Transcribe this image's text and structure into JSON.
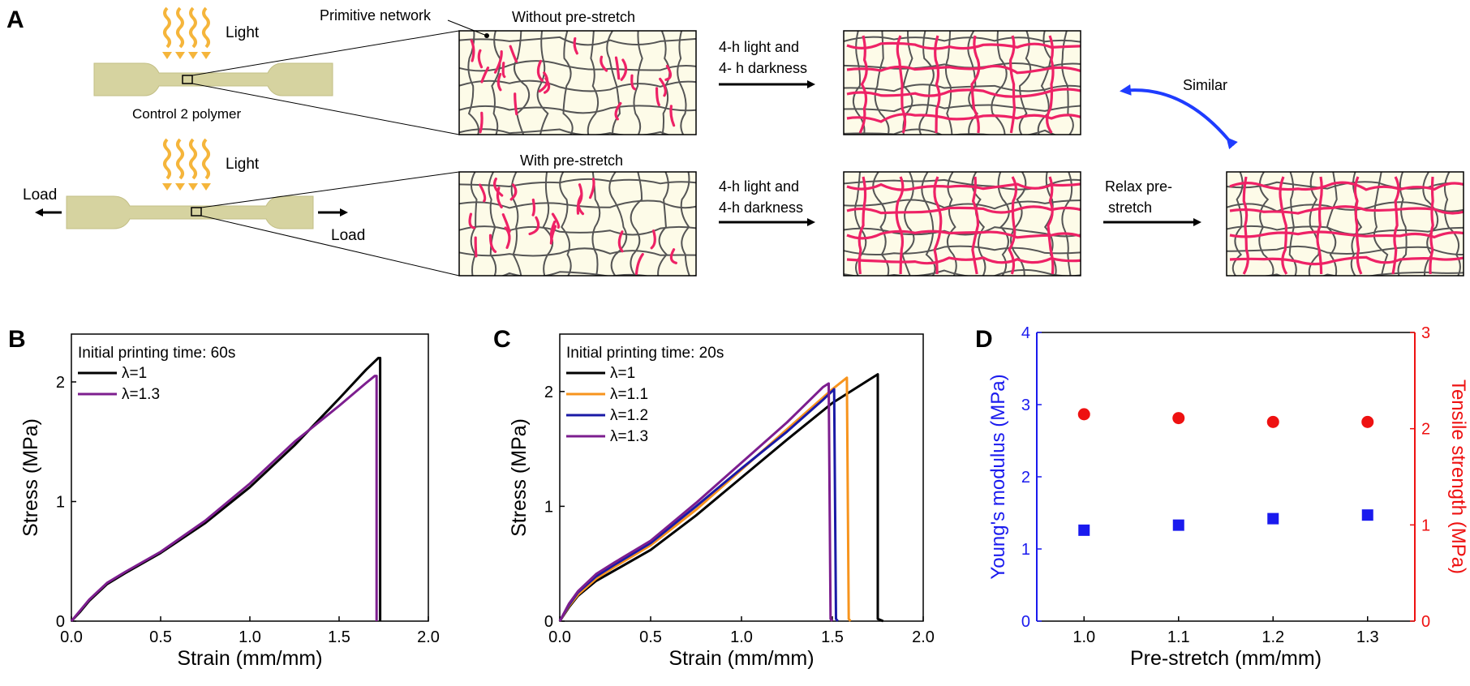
{
  "panelA": {
    "label": "A",
    "light": "Light",
    "load": "Load",
    "control": "Control 2 polymer",
    "primitive": "Primitive network",
    "without": "Without pre-stretch",
    "with": "With pre-stretch",
    "step_top_1": "4-h light and",
    "step_top_2": "4- h darkness",
    "step_bot_1": "4-h light and",
    "step_bot_2": "4-h darkness",
    "relax_1": "Relax pre-",
    "relax_2": "stretch",
    "similar": "Similar",
    "colors": {
      "strand": "#555555",
      "new_strand": "#ee2266",
      "box": "#fdfbe8",
      "arrow_blue": "#1f3cff",
      "light": "#f5b53b",
      "polymer": "#d6d3a0"
    }
  },
  "chart_data": [
    {
      "panel": "B",
      "type": "line",
      "annotation": "Initial printing time: 60s",
      "xlabel": "Strain (mm/mm)",
      "ylabel": "Stress (MPa)",
      "xlim": [
        0,
        2.0
      ],
      "ylim": [
        0,
        2.4
      ],
      "xticks": [
        "0.0",
        "0.5",
        "1.0",
        "1.5",
        "2.0"
      ],
      "yticks": [
        "0",
        "1",
        "2"
      ],
      "series": [
        {
          "name": "λ=1",
          "color": "#000000",
          "x": [
            0,
            0.05,
            0.1,
            0.2,
            0.3,
            0.5,
            0.75,
            1.0,
            1.25,
            1.5,
            1.65,
            1.72,
            1.73,
            1.73
          ],
          "y": [
            0,
            0.08,
            0.17,
            0.31,
            0.4,
            0.57,
            0.82,
            1.12,
            1.47,
            1.86,
            2.1,
            2.2,
            2.2,
            0
          ]
        },
        {
          "name": "λ=1.3",
          "color": "#7d1e8f",
          "x": [
            0,
            0.05,
            0.1,
            0.2,
            0.3,
            0.5,
            0.75,
            1.0,
            1.25,
            1.5,
            1.65,
            1.7,
            1.71,
            1.71
          ],
          "y": [
            0,
            0.09,
            0.18,
            0.32,
            0.41,
            0.58,
            0.84,
            1.15,
            1.5,
            1.8,
            1.99,
            2.05,
            2.05,
            0
          ]
        }
      ]
    },
    {
      "panel": "C",
      "type": "line",
      "annotation": "Initial printing time: 20s",
      "xlabel": "Strain (mm/mm)",
      "ylabel": "Stress (MPa)",
      "xlim": [
        0,
        2.0
      ],
      "ylim": [
        0,
        2.5
      ],
      "xticks": [
        "0.0",
        "0.5",
        "1.0",
        "1.5",
        "2.0"
      ],
      "yticks": [
        "0",
        "1",
        "2"
      ],
      "series": [
        {
          "name": "λ=1",
          "color": "#000000",
          "x": [
            0,
            0.05,
            0.1,
            0.2,
            0.3,
            0.5,
            0.75,
            1.0,
            1.25,
            1.5,
            1.7,
            1.75,
            1.75,
            1.78
          ],
          "y": [
            0,
            0.12,
            0.22,
            0.35,
            0.44,
            0.62,
            0.92,
            1.25,
            1.58,
            1.9,
            2.1,
            2.15,
            0.02,
            0
          ]
        },
        {
          "name": "λ=1.1",
          "color": "#f7941d",
          "x": [
            0,
            0.05,
            0.1,
            0.2,
            0.3,
            0.5,
            0.75,
            1.0,
            1.25,
            1.5,
            1.58,
            1.59,
            1.6
          ],
          "y": [
            0,
            0.13,
            0.23,
            0.37,
            0.47,
            0.66,
            0.97,
            1.32,
            1.67,
            2.02,
            2.12,
            0.02,
            0
          ]
        },
        {
          "name": "λ=1.2",
          "color": "#1a1aa6",
          "x": [
            0,
            0.05,
            0.1,
            0.2,
            0.3,
            0.5,
            0.75,
            1.0,
            1.25,
            1.45,
            1.51,
            1.52,
            1.53
          ],
          "y": [
            0,
            0.14,
            0.25,
            0.39,
            0.49,
            0.68,
            1.0,
            1.33,
            1.65,
            1.93,
            2.02,
            0.02,
            0
          ]
        },
        {
          "name": "λ=1.3",
          "color": "#7d1e8f",
          "x": [
            0,
            0.05,
            0.1,
            0.2,
            0.3,
            0.5,
            0.75,
            1.0,
            1.25,
            1.45,
            1.48,
            1.49,
            1.5
          ],
          "y": [
            0,
            0.15,
            0.26,
            0.41,
            0.51,
            0.7,
            1.03,
            1.38,
            1.73,
            2.04,
            2.07,
            0.02,
            0
          ]
        }
      ]
    },
    {
      "panel": "D",
      "type": "scatter",
      "xlabel": "Pre-stretch (mm/mm)",
      "ylabel_left": "Young's modulus (MPa)",
      "ylabel_right": "Tensile strength (MPa)",
      "xlim": [
        0.95,
        1.35
      ],
      "ylim_left": [
        0,
        4
      ],
      "ylim_right": [
        0,
        3
      ],
      "xticks": [
        "1.0",
        "1.1",
        "1.2",
        "1.3"
      ],
      "yticks_left": [
        "0",
        "1",
        "2",
        "3",
        "4"
      ],
      "yticks_right": [
        "0",
        "1",
        "2",
        "3"
      ],
      "series": [
        {
          "axis": "left",
          "marker": "square",
          "color": "#1a1aee",
          "x": [
            1.0,
            1.1,
            1.2,
            1.3
          ],
          "y": [
            1.26,
            1.33,
            1.42,
            1.47
          ]
        },
        {
          "axis": "right",
          "marker": "circle",
          "color": "#ee1111",
          "x": [
            1.0,
            1.1,
            1.2,
            1.3
          ],
          "y": [
            2.15,
            2.11,
            2.07,
            2.07
          ]
        }
      ]
    }
  ],
  "panel_labels": {
    "b": "B",
    "c": "C",
    "d": "D"
  }
}
